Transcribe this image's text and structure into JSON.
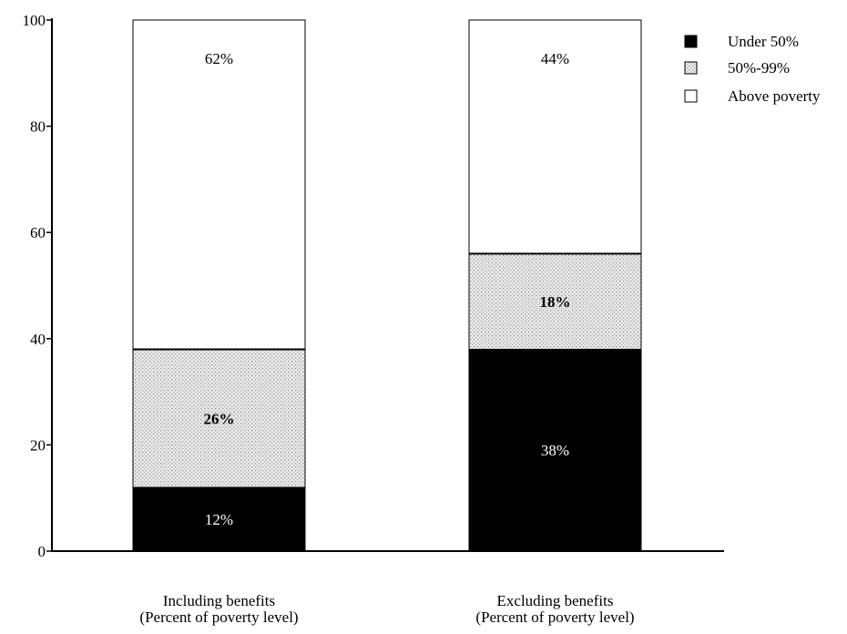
{
  "chart_data": {
    "type": "bar",
    "stacked": true,
    "categories": [
      [
        "Including benefits",
        "(Percent of poverty level)"
      ],
      [
        "Excluding benefits",
        "(Percent of poverty level)"
      ]
    ],
    "series": [
      {
        "name": "Under 50%",
        "values": [
          12,
          38
        ],
        "labels": [
          "12%",
          "38%"
        ],
        "color": "#000000",
        "label_color": "#ffffff",
        "label_weight": "normal",
        "pattern": "solid"
      },
      {
        "name": "50%-99%",
        "values": [
          26,
          18
        ],
        "labels": [
          "26%",
          "18%"
        ],
        "color": "#d9d9d9",
        "label_color": "#000000",
        "label_weight": "bold",
        "pattern": "dotted"
      },
      {
        "name": "Above poverty",
        "values": [
          62,
          44
        ],
        "labels": [
          "62%",
          "44%"
        ],
        "color": "#ffffff",
        "label_color": "#000000",
        "label_weight": "normal",
        "pattern": "none"
      }
    ],
    "ylim": [
      0,
      100
    ],
    "yticks": [
      0,
      20,
      40,
      60,
      80,
      100
    ],
    "grid": false,
    "legend_position": "top-right",
    "title": "",
    "xlabel": "",
    "ylabel": ""
  }
}
